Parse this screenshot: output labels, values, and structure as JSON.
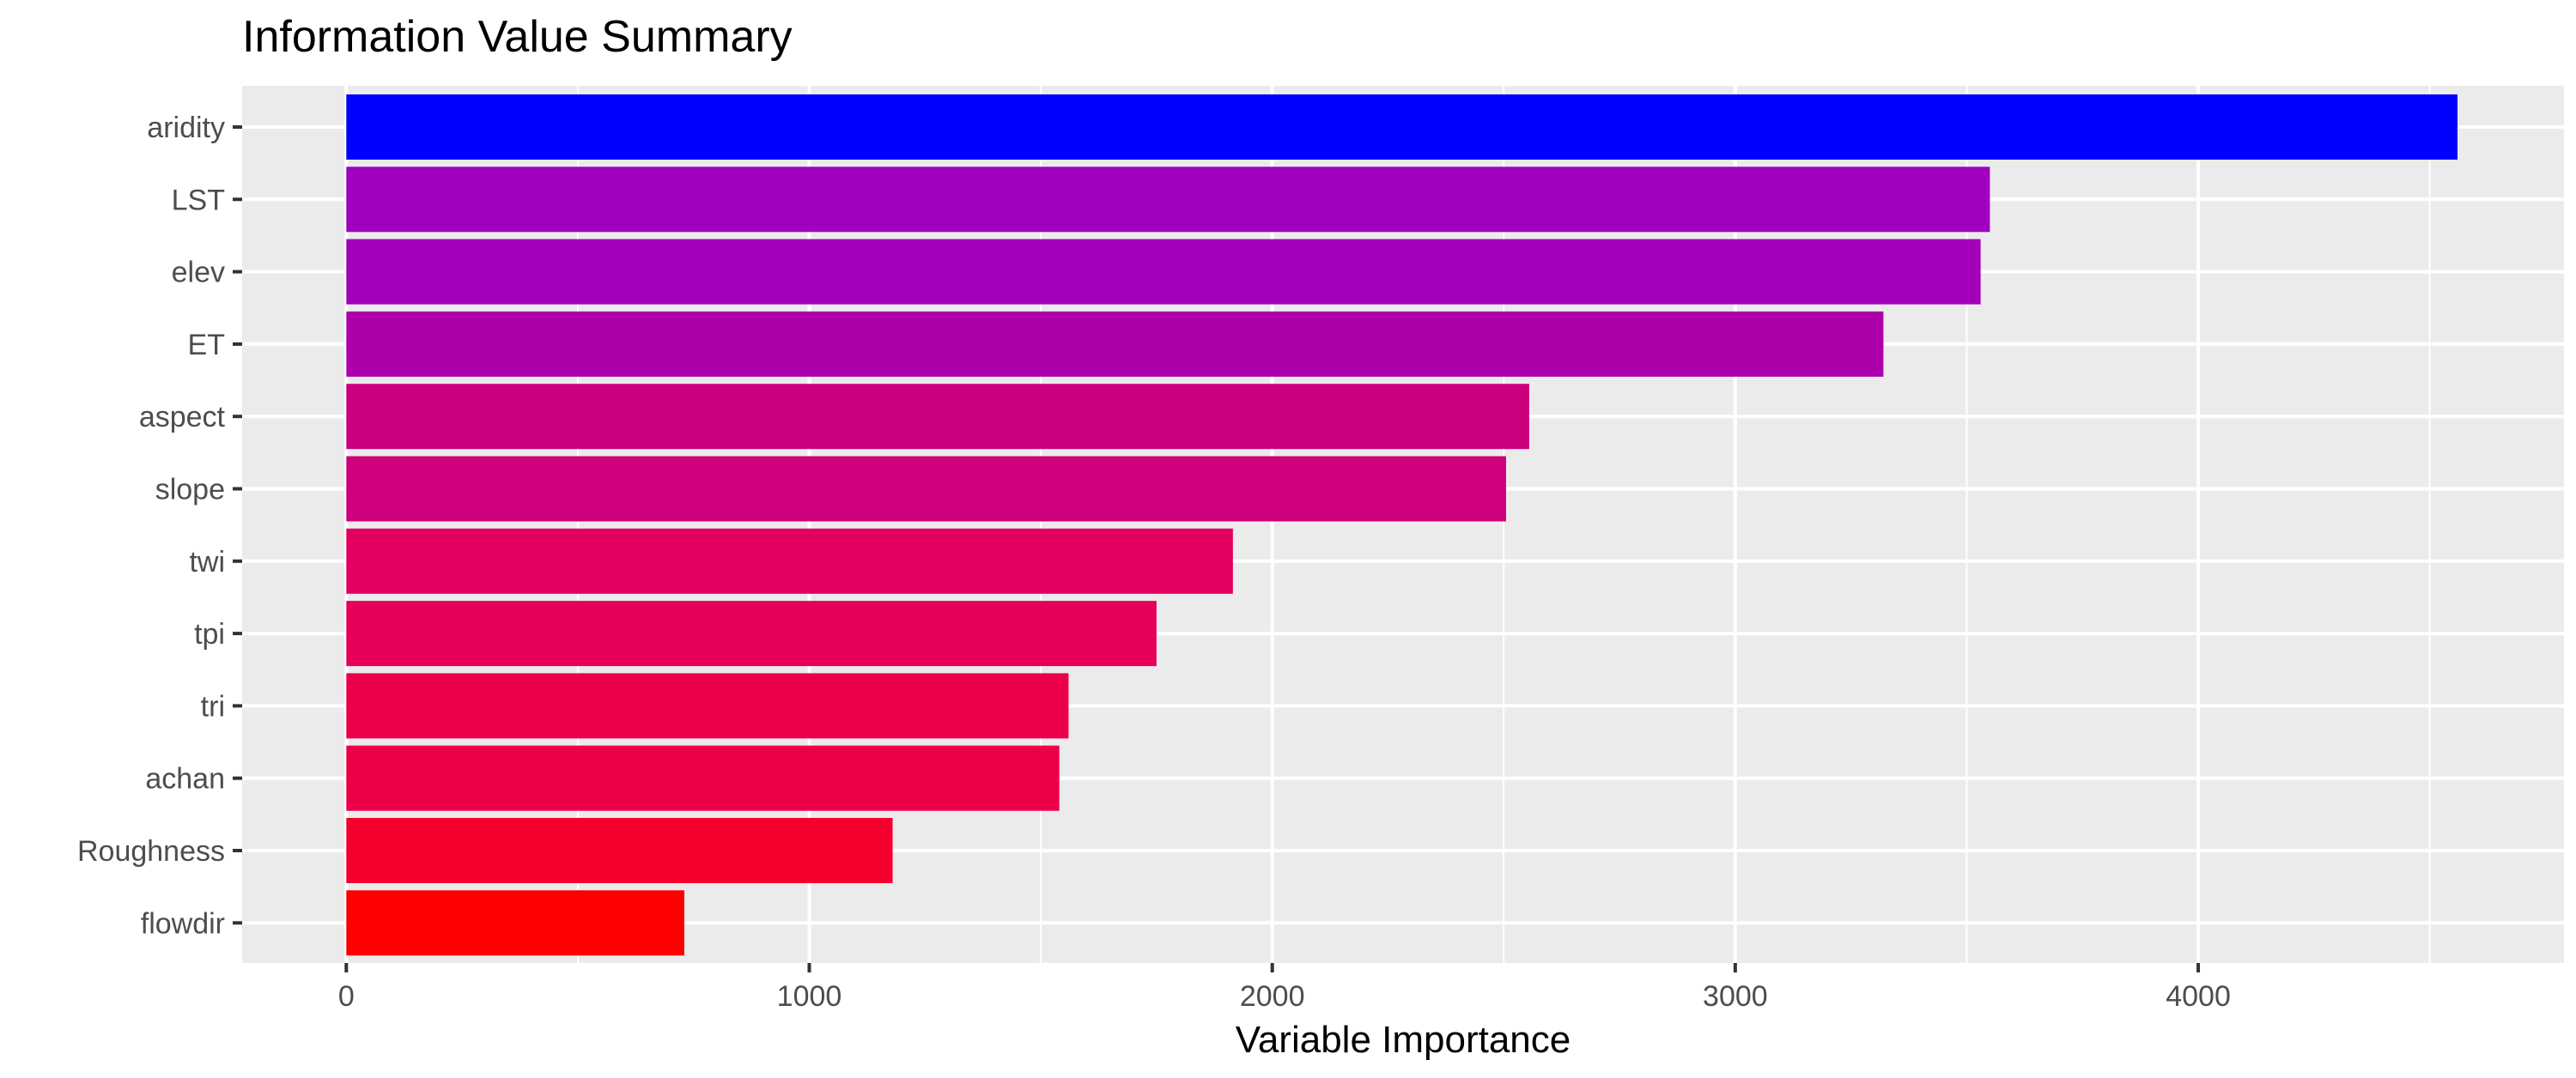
{
  "chart_data": {
    "type": "bar",
    "orientation": "horizontal",
    "title": "Information Value Summary",
    "xlabel": "Variable Importance",
    "ylabel": "",
    "categories": [
      "aridity",
      "LST",
      "elev",
      "ET",
      "aspect",
      "slope",
      "twi",
      "tpi",
      "tri",
      "achan",
      "Roughness",
      "flowdir"
    ],
    "values": [
      4560,
      3550,
      3530,
      3320,
      2555,
      2505,
      1915,
      1750,
      1560,
      1540,
      1180,
      730
    ],
    "colors": [
      "#0000ff",
      "#a000c0",
      "#a300ba",
      "#ad00ab",
      "#cc007f",
      "#cf007b",
      "#e30060",
      "#e7005a",
      "#ec004a",
      "#ed0048",
      "#f5002d",
      "#ff0000"
    ],
    "xlim": [
      -225,
      4790
    ],
    "xticks": [
      0,
      1000,
      2000,
      3000,
      4000
    ],
    "xtick_labels": [
      "0",
      "1000",
      "2000",
      "3000",
      "4000"
    ],
    "grid": true,
    "legend": "none",
    "panel_background": "#ebebeb",
    "grid_color": "#ffffff"
  }
}
